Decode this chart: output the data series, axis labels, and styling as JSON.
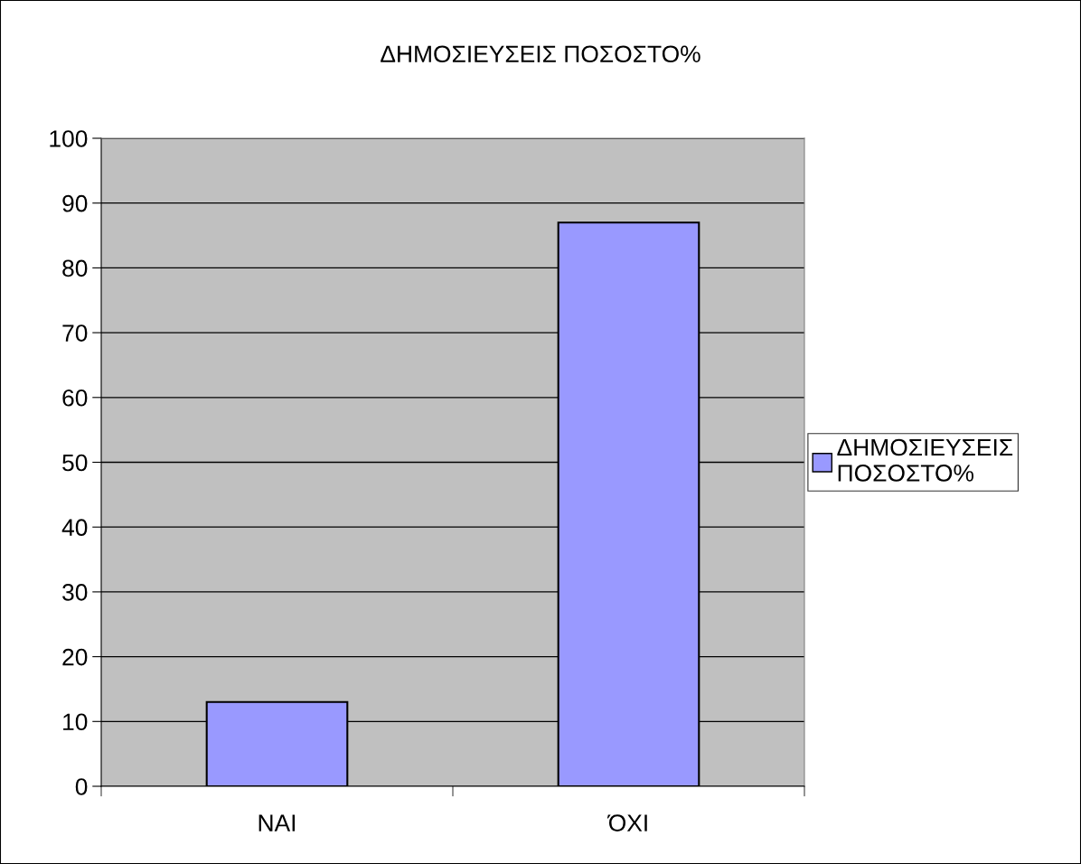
{
  "chart_data": {
    "type": "bar",
    "title": "ΔΗΜΟΣΙΕΥΣΕΙΣ ΠΟΣΟΣΤΟ%",
    "categories": [
      "ΝΑΙ",
      "ΌΧΙ"
    ],
    "series": [
      {
        "name": "ΔΗΜΟΣΙΕΥΣΕΙΣ ΠΟΣΟΣΤΟ%",
        "color": "#9999ff",
        "values": [
          13,
          87
        ]
      }
    ],
    "ylim": [
      0,
      100
    ],
    "yticks": [
      0,
      10,
      20,
      30,
      40,
      50,
      60,
      70,
      80,
      90,
      100
    ],
    "grid": "y",
    "legend": "right"
  }
}
